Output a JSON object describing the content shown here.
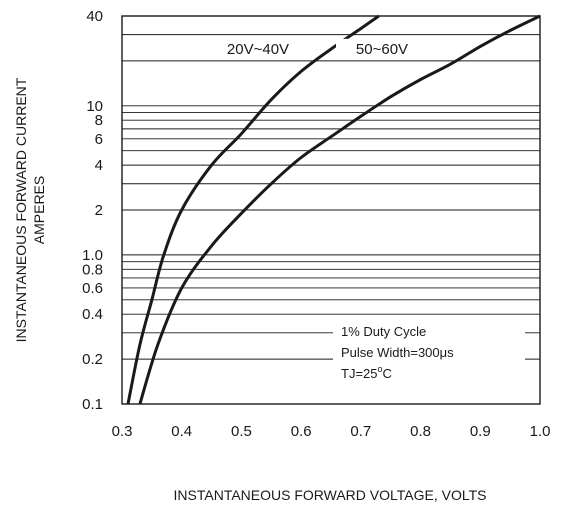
{
  "chart_data": {
    "type": "line",
    "title": "",
    "xlabel": "INSTANTANEOUS FORWARD VOLTAGE, VOLTS",
    "ylabel": "INSTANTANEOUS FORWARD CURRENT",
    "ylabel2": "AMPERES",
    "xlim": [
      0.3,
      1.0
    ],
    "ylim": [
      0.1,
      40
    ],
    "yscale": "log",
    "grid": "horizontal",
    "xticks": [
      "0.3",
      "0.4",
      "0.5",
      "0.6",
      "0.7",
      "0.8",
      "0.9",
      "1.0"
    ],
    "yticks": [
      "0.1",
      "0.2",
      "0.4",
      "0.6",
      "0.8",
      "1.0",
      "2",
      "4",
      "6",
      "8",
      "10",
      "40"
    ],
    "series": [
      {
        "name": "20V~40V",
        "x": [
          0.31,
          0.33,
          0.35,
          0.37,
          0.4,
          0.45,
          0.5,
          0.55,
          0.6,
          0.65,
          0.7,
          0.73
        ],
        "y": [
          0.1,
          0.25,
          0.5,
          1.0,
          2.0,
          4.0,
          6.5,
          11,
          17,
          24,
          33,
          40
        ]
      },
      {
        "name": "50~60V",
        "x": [
          0.33,
          0.36,
          0.4,
          0.45,
          0.5,
          0.55,
          0.6,
          0.65,
          0.7,
          0.75,
          0.8,
          0.85,
          0.9,
          0.95,
          1.0
        ],
        "y": [
          0.1,
          0.25,
          0.6,
          1.15,
          1.9,
          3.0,
          4.5,
          6.2,
          8.5,
          11.5,
          15,
          19,
          25,
          32,
          40
        ]
      }
    ],
    "annotation": {
      "line1": "1% Duty Cycle",
      "line2": "Pulse Width=300μs",
      "line3_prefix": "TJ=25",
      "line3_sup": "o",
      "line3_suffix": "C"
    },
    "colors": {
      "curve": "#1a1a1a",
      "grid": "#1a1a1a"
    }
  }
}
